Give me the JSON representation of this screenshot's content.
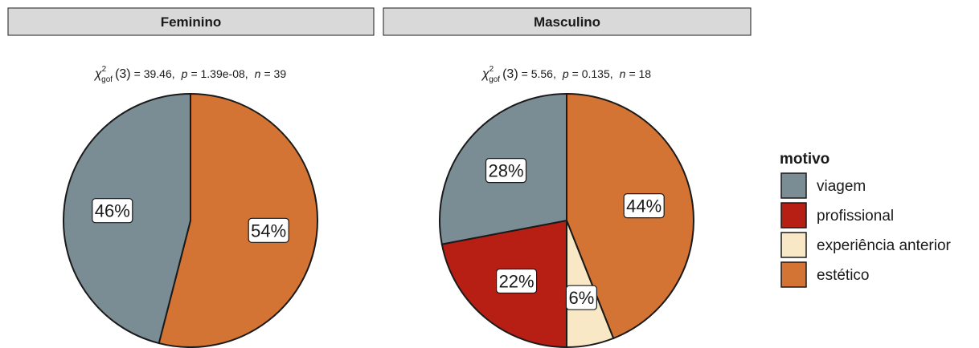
{
  "chart_data": {
    "type": "pie",
    "legend": {
      "title": "motivo",
      "position": "right",
      "entries": [
        {
          "label": "viagem",
          "color": "#7a8c94"
        },
        {
          "label": "profissional",
          "color": "#b71f14"
        },
        {
          "label": "experiência anterior",
          "color": "#f8e8c5"
        },
        {
          "label": "estético",
          "color": "#d37434"
        }
      ]
    },
    "panels": [
      {
        "title": "Feminino",
        "stat": {
          "symbol": "χ",
          "sup": "2",
          "sub": "gof",
          "df": "(3)",
          "stat_value": "= 39.46,",
          "p_label": "p",
          "p_value": "= 1.39e-08,",
          "n_label": "n",
          "n_value": "= 39"
        },
        "slices": [
          {
            "category": "estético",
            "percent": 54,
            "label": "54%"
          },
          {
            "category": "viagem",
            "percent": 46,
            "label": "46%"
          }
        ]
      },
      {
        "title": "Masculino",
        "stat": {
          "symbol": "χ",
          "sup": "2",
          "sub": "gof",
          "df": "(3)",
          "stat_value": "= 5.56,",
          "p_label": "p",
          "p_value": "= 0.135,",
          "n_label": "n",
          "n_value": "= 18"
        },
        "slices": [
          {
            "category": "estético",
            "percent": 44,
            "label": "44%"
          },
          {
            "category": "experiência anterior",
            "percent": 6,
            "label": "6%"
          },
          {
            "category": "profissional",
            "percent": 22,
            "label": "22%"
          },
          {
            "category": "viagem",
            "percent": 28,
            "label": "28%"
          }
        ]
      }
    ]
  }
}
